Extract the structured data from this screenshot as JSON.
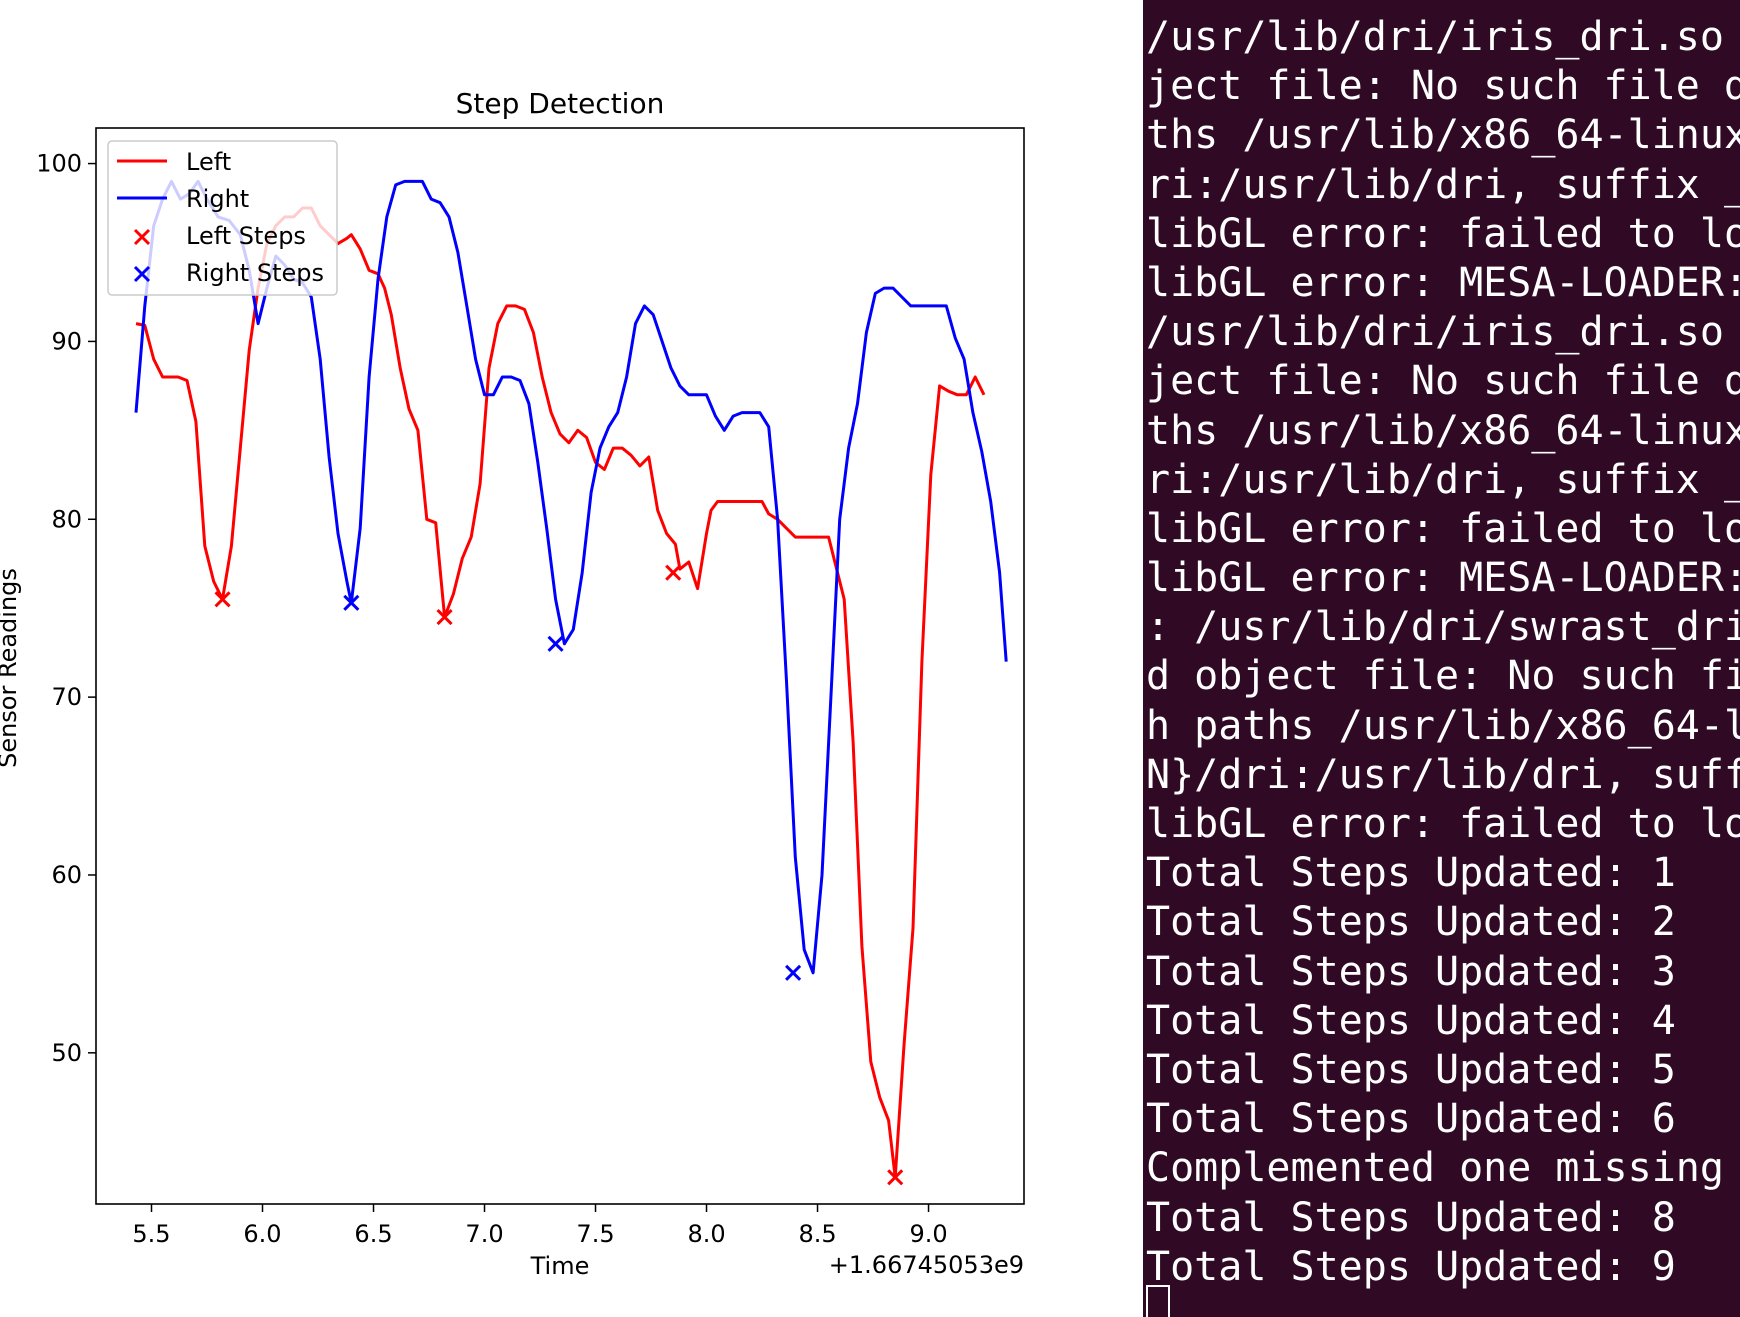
{
  "chart_data": {
    "type": "line",
    "title": "Step Detection",
    "xlabel": "Time",
    "ylabel": "Sensor Readings",
    "offset_label": "+1.66745053e9",
    "xlim": [
      5.25,
      9.43
    ],
    "ylim": [
      41.5,
      102.0
    ],
    "xticks": [
      5.5,
      6.0,
      6.5,
      7.0,
      7.5,
      8.0,
      8.5,
      9.0
    ],
    "xtick_labels": [
      "5.5",
      "6.0",
      "6.5",
      "7.0",
      "7.5",
      "8.0",
      "8.5",
      "9.0"
    ],
    "yticks": [
      50,
      60,
      70,
      80,
      90,
      100
    ],
    "ytick_labels": [
      "50",
      "60",
      "70",
      "80",
      "90",
      "100"
    ],
    "grid": false,
    "legend_position": "upper-left",
    "legend": [
      {
        "label": "Left",
        "kind": "line",
        "color": "#ff0000"
      },
      {
        "label": "Right",
        "kind": "line",
        "color": "#0000ff"
      },
      {
        "label": "Left Steps",
        "kind": "marker",
        "color": "#ff0000"
      },
      {
        "label": "Right Steps",
        "kind": "marker",
        "color": "#0000ff"
      }
    ],
    "series": [
      {
        "name": "Left",
        "color": "#ff0000",
        "points": [
          [
            5.43,
            91.0
          ],
          [
            5.47,
            90.9
          ],
          [
            5.51,
            89.0
          ],
          [
            5.55,
            88.0
          ],
          [
            5.62,
            88.0
          ],
          [
            5.66,
            87.8
          ],
          [
            5.7,
            85.5
          ],
          [
            5.74,
            78.5
          ],
          [
            5.78,
            76.5
          ],
          [
            5.82,
            75.5
          ],
          [
            5.86,
            78.5
          ],
          [
            5.9,
            84.0
          ],
          [
            5.94,
            89.5
          ],
          [
            5.98,
            93.0
          ],
          [
            6.02,
            95.5
          ],
          [
            6.06,
            96.5
          ],
          [
            6.1,
            97.0
          ],
          [
            6.14,
            97.0
          ],
          [
            6.18,
            97.5
          ],
          [
            6.22,
            97.5
          ],
          [
            6.26,
            96.5
          ],
          [
            6.3,
            96.0
          ],
          [
            6.34,
            95.5
          ],
          [
            6.38,
            95.8
          ],
          [
            6.4,
            96.0
          ],
          [
            6.44,
            95.2
          ],
          [
            6.48,
            94.0
          ],
          [
            6.52,
            93.8
          ],
          [
            6.55,
            93.0
          ],
          [
            6.58,
            91.5
          ],
          [
            6.62,
            88.5
          ],
          [
            6.66,
            86.2
          ],
          [
            6.7,
            85.0
          ],
          [
            6.74,
            80.0
          ],
          [
            6.78,
            79.8
          ],
          [
            6.82,
            74.5
          ],
          [
            6.86,
            75.8
          ],
          [
            6.9,
            77.8
          ],
          [
            6.94,
            79.0
          ],
          [
            6.98,
            82.0
          ],
          [
            7.02,
            88.5
          ],
          [
            7.06,
            91.0
          ],
          [
            7.1,
            92.0
          ],
          [
            7.14,
            92.0
          ],
          [
            7.18,
            91.8
          ],
          [
            7.22,
            90.5
          ],
          [
            7.26,
            88.0
          ],
          [
            7.3,
            86.0
          ],
          [
            7.34,
            84.8
          ],
          [
            7.38,
            84.3
          ],
          [
            7.42,
            85.0
          ],
          [
            7.46,
            84.6
          ],
          [
            7.5,
            83.2
          ],
          [
            7.54,
            82.8
          ],
          [
            7.58,
            84.0
          ],
          [
            7.62,
            84.0
          ],
          [
            7.66,
            83.6
          ],
          [
            7.7,
            83.0
          ],
          [
            7.74,
            83.5
          ],
          [
            7.78,
            80.5
          ],
          [
            7.82,
            79.2
          ],
          [
            7.86,
            78.6
          ],
          [
            7.88,
            77.2
          ],
          [
            7.92,
            77.6
          ],
          [
            7.96,
            76.1
          ],
          [
            8.0,
            79.2
          ],
          [
            8.02,
            80.5
          ],
          [
            8.05,
            81.0
          ],
          [
            8.1,
            81.0
          ],
          [
            8.15,
            81.0
          ],
          [
            8.2,
            81.0
          ],
          [
            8.25,
            81.0
          ],
          [
            8.28,
            80.3
          ],
          [
            8.32,
            80.0
          ],
          [
            8.36,
            79.5
          ],
          [
            8.4,
            79.0
          ],
          [
            8.44,
            79.0
          ],
          [
            8.48,
            79.0
          ],
          [
            8.52,
            79.0
          ],
          [
            8.55,
            79.0
          ],
          [
            8.58,
            77.5
          ],
          [
            8.62,
            75.5
          ],
          [
            8.66,
            67.5
          ],
          [
            8.7,
            56.0
          ],
          [
            8.74,
            49.5
          ],
          [
            8.78,
            47.5
          ],
          [
            8.82,
            46.2
          ],
          [
            8.85,
            43.0
          ],
          [
            8.89,
            50.5
          ],
          [
            8.93,
            57.0
          ],
          [
            8.97,
            72.0
          ],
          [
            9.01,
            82.5
          ],
          [
            9.05,
            87.5
          ],
          [
            9.09,
            87.2
          ],
          [
            9.13,
            87.0
          ],
          [
            9.17,
            87.0
          ],
          [
            9.21,
            88.0
          ],
          [
            9.25,
            87.0
          ]
        ]
      },
      {
        "name": "Right",
        "color": "#0000ff",
        "points": [
          [
            5.43,
            86.0
          ],
          [
            5.47,
            92.0
          ],
          [
            5.51,
            96.5
          ],
          [
            5.55,
            98.0
          ],
          [
            5.59,
            99.0
          ],
          [
            5.63,
            98.0
          ],
          [
            5.67,
            98.3
          ],
          [
            5.71,
            99.0
          ],
          [
            5.75,
            98.0
          ],
          [
            5.8,
            97.0
          ],
          [
            5.85,
            96.8
          ],
          [
            5.9,
            96.0
          ],
          [
            5.94,
            94.0
          ],
          [
            5.98,
            91.0
          ],
          [
            6.02,
            93.0
          ],
          [
            6.06,
            94.8
          ],
          [
            6.1,
            94.3
          ],
          [
            6.14,
            93.5
          ],
          [
            6.18,
            93.3
          ],
          [
            6.22,
            92.5
          ],
          [
            6.26,
            89.0
          ],
          [
            6.3,
            83.5
          ],
          [
            6.34,
            79.2
          ],
          [
            6.38,
            76.5
          ],
          [
            6.4,
            75.3
          ],
          [
            6.44,
            79.5
          ],
          [
            6.48,
            88.0
          ],
          [
            6.52,
            93.5
          ],
          [
            6.56,
            97.0
          ],
          [
            6.6,
            98.8
          ],
          [
            6.64,
            99.0
          ],
          [
            6.68,
            99.0
          ],
          [
            6.72,
            99.0
          ],
          [
            6.76,
            98.0
          ],
          [
            6.8,
            97.8
          ],
          [
            6.84,
            97.0
          ],
          [
            6.88,
            95.0
          ],
          [
            6.92,
            92.0
          ],
          [
            6.96,
            89.0
          ],
          [
            7.0,
            87.0
          ],
          [
            7.04,
            87.0
          ],
          [
            7.08,
            88.0
          ],
          [
            7.12,
            88.0
          ],
          [
            7.16,
            87.8
          ],
          [
            7.2,
            86.5
          ],
          [
            7.24,
            83.2
          ],
          [
            7.28,
            79.5
          ],
          [
            7.32,
            75.5
          ],
          [
            7.36,
            73.0
          ],
          [
            7.4,
            73.8
          ],
          [
            7.44,
            77.0
          ],
          [
            7.48,
            81.5
          ],
          [
            7.52,
            84.0
          ],
          [
            7.56,
            85.2
          ],
          [
            7.6,
            86.0
          ],
          [
            7.64,
            88.0
          ],
          [
            7.68,
            91.0
          ],
          [
            7.72,
            92.0
          ],
          [
            7.76,
            91.5
          ],
          [
            7.8,
            90.0
          ],
          [
            7.84,
            88.5
          ],
          [
            7.88,
            87.5
          ],
          [
            7.92,
            87.0
          ],
          [
            7.96,
            87.0
          ],
          [
            8.0,
            87.0
          ],
          [
            8.04,
            85.8
          ],
          [
            8.08,
            85.0
          ],
          [
            8.12,
            85.8
          ],
          [
            8.16,
            86.0
          ],
          [
            8.2,
            86.0
          ],
          [
            8.24,
            86.0
          ],
          [
            8.28,
            85.2
          ],
          [
            8.32,
            80.0
          ],
          [
            8.36,
            71.0
          ],
          [
            8.4,
            61.0
          ],
          [
            8.44,
            55.8
          ],
          [
            8.48,
            54.5
          ],
          [
            8.52,
            60.0
          ],
          [
            8.56,
            70.0
          ],
          [
            8.6,
            80.0
          ],
          [
            8.64,
            84.0
          ],
          [
            8.68,
            86.5
          ],
          [
            8.72,
            90.5
          ],
          [
            8.76,
            92.7
          ],
          [
            8.8,
            93.0
          ],
          [
            8.84,
            93.0
          ],
          [
            8.88,
            92.5
          ],
          [
            8.92,
            92.0
          ],
          [
            8.96,
            92.0
          ],
          [
            9.0,
            92.0
          ],
          [
            9.04,
            92.0
          ],
          [
            9.08,
            92.0
          ],
          [
            9.12,
            90.2
          ],
          [
            9.16,
            89.0
          ],
          [
            9.2,
            86.0
          ],
          [
            9.24,
            83.8
          ],
          [
            9.28,
            81.0
          ],
          [
            9.32,
            77.0
          ],
          [
            9.35,
            72.0
          ]
        ]
      }
    ],
    "markers": [
      {
        "name": "Left Steps",
        "color": "#ff0000",
        "points": [
          [
            5.82,
            75.5
          ],
          [
            6.82,
            74.5
          ],
          [
            7.85,
            77.0
          ],
          [
            8.85,
            43.0
          ]
        ]
      },
      {
        "name": "Right Steps",
        "color": "#0000ff",
        "points": [
          [
            6.4,
            75.3
          ],
          [
            7.32,
            73.0
          ],
          [
            8.39,
            54.5
          ]
        ]
      }
    ]
  },
  "terminal": {
    "background": "#300a24",
    "lines": [
      "/usr/lib/dri/iris_dri.so",
      "ject file: No such file d",
      "ths /usr/lib/x86_64-linux",
      "ri:/usr/lib/dri, suffix _",
      "libGL error: failed to lo",
      "libGL error: MESA-LOADER:",
      "/usr/lib/dri/iris_dri.so",
      "ject file: No such file d",
      "ths /usr/lib/x86_64-linux",
      "ri:/usr/lib/dri, suffix _",
      "libGL error: failed to lo",
      "libGL error: MESA-LOADER:",
      ": /usr/lib/dri/swrast_dri",
      "d object file: No such fi",
      "h paths /usr/lib/x86_64-l",
      "N}/dri:/usr/lib/dri, suff",
      "libGL error: failed to lo",
      "Total Steps Updated: 1",
      "Total Steps Updated: 2",
      "Total Steps Updated: 3",
      "Total Steps Updated: 4",
      "Total Steps Updated: 5",
      "Total Steps Updated: 6",
      "Complemented one missing",
      "Total Steps Updated: 8",
      "Total Steps Updated: 9"
    ]
  }
}
